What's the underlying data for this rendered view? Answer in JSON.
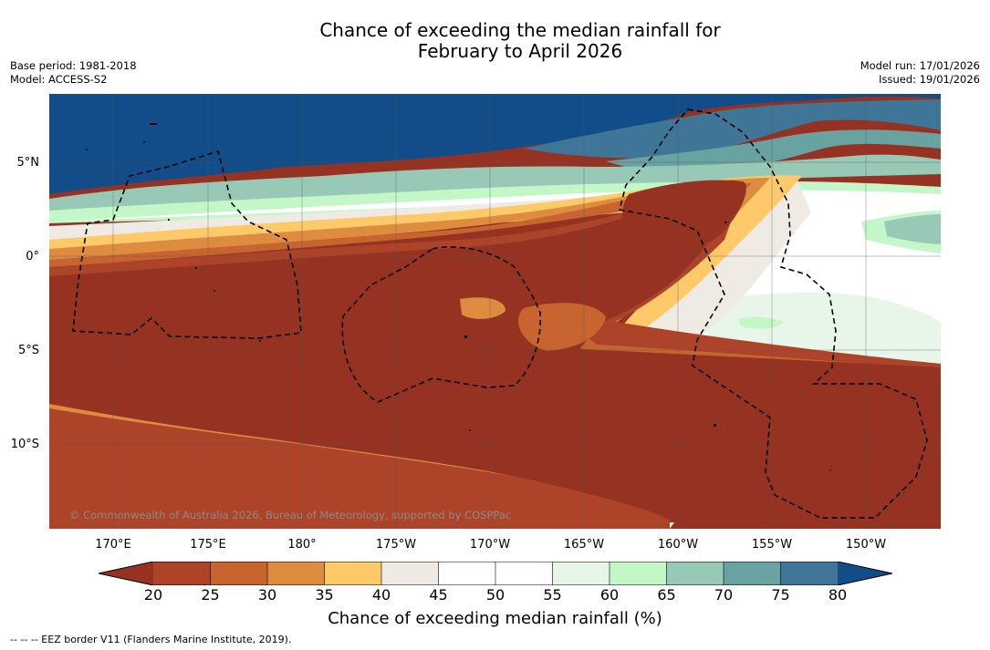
{
  "title": {
    "line1": "Chance of exceeding the median rainfall for",
    "line2": "February to April 2026"
  },
  "meta": {
    "base_period": "Base period: 1981-2018",
    "model": "Model: ACCESS-S2",
    "model_run": "Model run: 17/01/2026",
    "issued": "Issued: 19/01/2026"
  },
  "map": {
    "copyright": "© Commonwealth of Australia 2026, Bureau of Meteorology, supported by COSPPac",
    "lat_labels": [
      "5°N",
      "0°",
      "5°S",
      "10°S"
    ],
    "lon_labels": [
      "170°E",
      "175°E",
      "180°",
      "175°W",
      "170°W",
      "165°W",
      "160°W",
      "155°W",
      "150°W"
    ]
  },
  "colorbar": {
    "ticks": [
      "20",
      "25",
      "30",
      "35",
      "40",
      "45",
      "50",
      "55",
      "60",
      "65",
      "70",
      "75",
      "80"
    ],
    "label": "Chance of exceeding median rainfall (%)",
    "colors": {
      "below20": "#963222",
      "c20_25": "#ad4329",
      "c25_30": "#c8642f",
      "c30_35": "#dd8c40",
      "c35_40": "#fec969",
      "c40_45": "#efebe4",
      "c45_50": "#ffffff",
      "c50_55": "#ffffff",
      "c55_60": "#e8f6ea",
      "c60_65": "#c3f7c8",
      "c65_70": "#98c9b6",
      "c70_75": "#68a2a1",
      "c75_80": "#3f7698",
      "above80": "#124d89"
    }
  },
  "legend_note": "-- -- -- EEZ border V11 (Flanders Marine Institute, 2019)."
}
